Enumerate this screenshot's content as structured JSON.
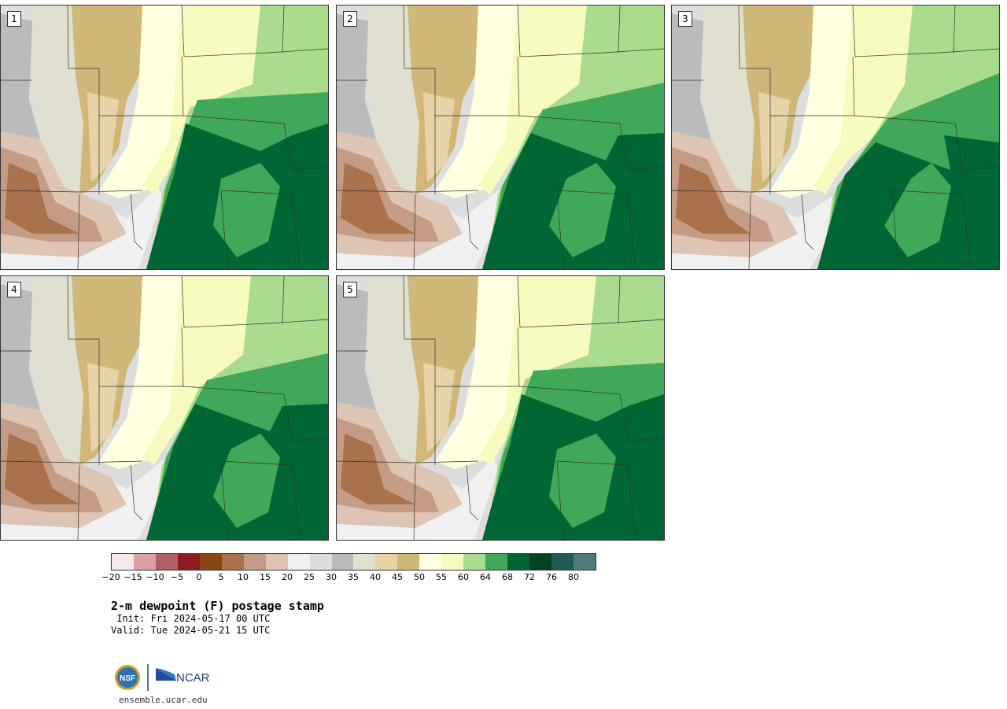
{
  "panels": [
    {
      "label": "1",
      "variant": 0
    },
    {
      "label": "2",
      "variant": 1
    },
    {
      "label": "3",
      "variant": 2
    },
    {
      "label": "4",
      "variant": 1
    },
    {
      "label": "5",
      "variant": 0
    }
  ],
  "legend": {
    "colors": [
      "#f4e9ea",
      "#d9a1a4",
      "#b25e64",
      "#8c1c24",
      "#8b4513",
      "#a9714c",
      "#c49c85",
      "#ddc4b3",
      "#f0f0f0",
      "#dddddd",
      "#bbbbbb",
      "#e0dfd0",
      "#e6d4a8",
      "#cfb778",
      "#ffffe0",
      "#f7fabf",
      "#a8dc8c",
      "#41a85a",
      "#006634",
      "#004425",
      "#1e5a58",
      "#4e7a7e"
    ],
    "ticks": [
      "−20",
      "−15",
      "−10",
      "−5",
      "0",
      "5",
      "10",
      "15",
      "20",
      "25",
      "30",
      "35",
      "40",
      "45",
      "50",
      "55",
      "60",
      "64",
      "68",
      "72",
      "76",
      "80"
    ]
  },
  "title": "2-m dewpoint (F) postage stamp",
  "init": " Init: Fri 2024-05-17 00 UTC",
  "valid": "Valid: Tue 2024-05-21 15 UTC",
  "website": "ensemble.ucar.edu",
  "logos": {
    "nsf": "NSF",
    "ncar": "NCAR"
  }
}
